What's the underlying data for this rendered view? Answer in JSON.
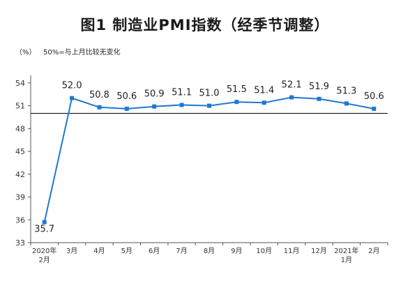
{
  "chart_data": {
    "type": "line",
    "title": "图1  制造业PMI指数（经季节调整）",
    "ylabel": "（%）",
    "reference_note": "50%=与上月比较无变化",
    "reference_value": 50,
    "ylim": [
      33,
      55
    ],
    "yticks": [
      33,
      36,
      39,
      42,
      45,
      48,
      51,
      54
    ],
    "categories": [
      [
        "2020年",
        "2月"
      ],
      [
        "3月"
      ],
      [
        "4月"
      ],
      [
        "5月"
      ],
      [
        "6月"
      ],
      [
        "7月"
      ],
      [
        "8月"
      ],
      [
        "9月"
      ],
      [
        "10月"
      ],
      [
        "11月"
      ],
      [
        "12月"
      ],
      [
        "2021年",
        "1月"
      ],
      [
        "2月"
      ]
    ],
    "values": [
      35.7,
      52.0,
      50.8,
      50.6,
      50.9,
      51.1,
      51.0,
      51.5,
      51.4,
      52.1,
      51.9,
      51.3,
      50.6
    ],
    "labels": [
      "35.7",
      "52.0",
      "50.8",
      "50.6",
      "50.9",
      "51.1",
      "51.0",
      "51.5",
      "51.4",
      "52.1",
      "51.9",
      "51.3",
      "50.6"
    ],
    "line_color": "#1f78d1",
    "grid": false
  }
}
